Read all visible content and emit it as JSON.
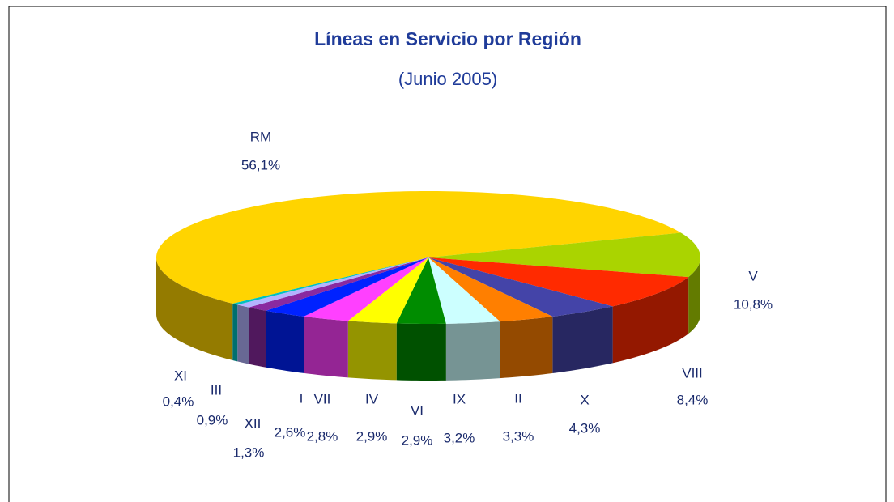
{
  "chart_data": {
    "type": "pie3d",
    "title": "Líneas en Servicio por Región",
    "subtitle": "(Junio 2005)",
    "categories": [
      "RM",
      "V",
      "VIII",
      "X",
      "II",
      "IX",
      "VI",
      "IV",
      "VII",
      "I",
      "XII",
      "III",
      "XI"
    ],
    "values": [
      56.1,
      10.8,
      8.4,
      4.3,
      3.3,
      3.2,
      2.9,
      2.9,
      2.8,
      2.6,
      1.3,
      0.9,
      0.4
    ],
    "value_labels": [
      "56,1%",
      "10,8%",
      "8,4%",
      "4,3%",
      "3,3%",
      "3,2%",
      "2,9%",
      "2,9%",
      "2,8%",
      "2,6%",
      "1,3%",
      "0,9%",
      "0,4%"
    ],
    "colors": [
      "#ffd400",
      "#aad400",
      "#ff2a00",
      "#4444a8",
      "#ff7f00",
      "#ccffff",
      "#008c00",
      "#ffff00",
      "#ff40ff",
      "#0022ff",
      "#8a2aa0",
      "#b4b4ff",
      "#00c0c0"
    ]
  }
}
